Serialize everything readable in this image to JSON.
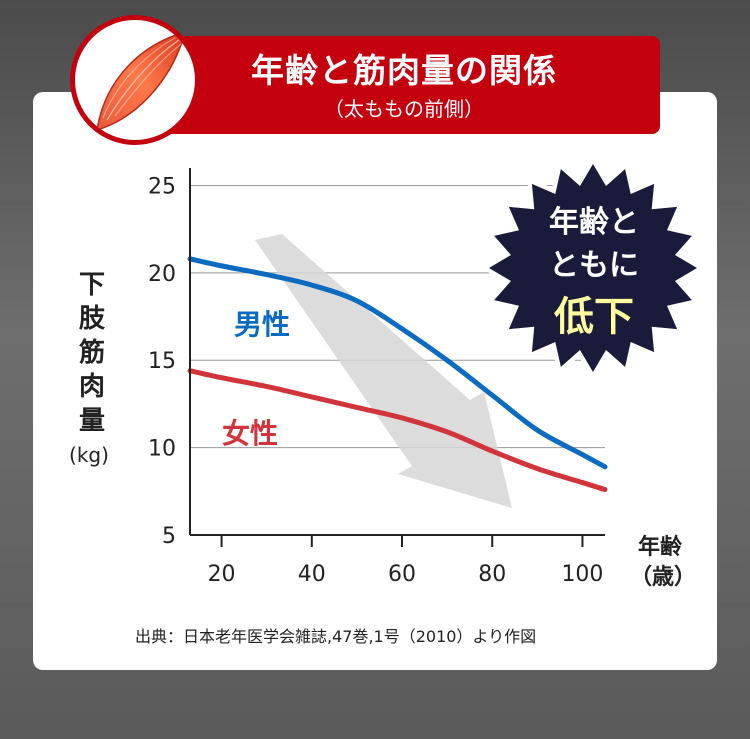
{
  "banner": {
    "title": "年齢と筋肉量の関係",
    "subtitle": "（太ももの前側）"
  },
  "axis": {
    "ylabel_lines": [
      "下",
      "肢",
      "筋",
      "肉",
      "量"
    ],
    "yunit": "(kg)",
    "xlabel_line1": "年齢",
    "xlabel_line2": "（歳）"
  },
  "starburst": {
    "line1": "年齢と",
    "line2": "ともに",
    "line3": "低下"
  },
  "source": "出典：日本老年医学会雑誌,47巻,1号（2010）より作図",
  "chart_data": {
    "type": "line",
    "x_ticks": [
      20,
      40,
      60,
      80,
      100
    ],
    "y_ticks": [
      5,
      10,
      15,
      20,
      25
    ],
    "xlim": [
      13,
      105
    ],
    "ylim": [
      5,
      26
    ],
    "grid": true,
    "series": [
      {
        "name": "男性",
        "color": "#0b6bc0",
        "x": [
          13,
          20,
          30,
          40,
          50,
          60,
          70,
          80,
          90,
          100,
          105
        ],
        "y": [
          20.8,
          20.4,
          19.9,
          19.3,
          18.4,
          16.8,
          15.0,
          13.0,
          11.0,
          9.6,
          8.9
        ]
      },
      {
        "name": "女性",
        "color": "#d2343c",
        "x": [
          13,
          20,
          30,
          40,
          50,
          60,
          70,
          80,
          90,
          100,
          105
        ],
        "y": [
          14.4,
          14.0,
          13.5,
          12.9,
          12.3,
          11.7,
          10.9,
          9.8,
          8.8,
          8.0,
          7.6
        ]
      }
    ]
  },
  "colors": {
    "banner": "#c4000e",
    "male": "#0b6bc0",
    "female": "#d2343c",
    "starburst": "#1a1a3a",
    "starburst_highlight": "#ffffa0"
  }
}
